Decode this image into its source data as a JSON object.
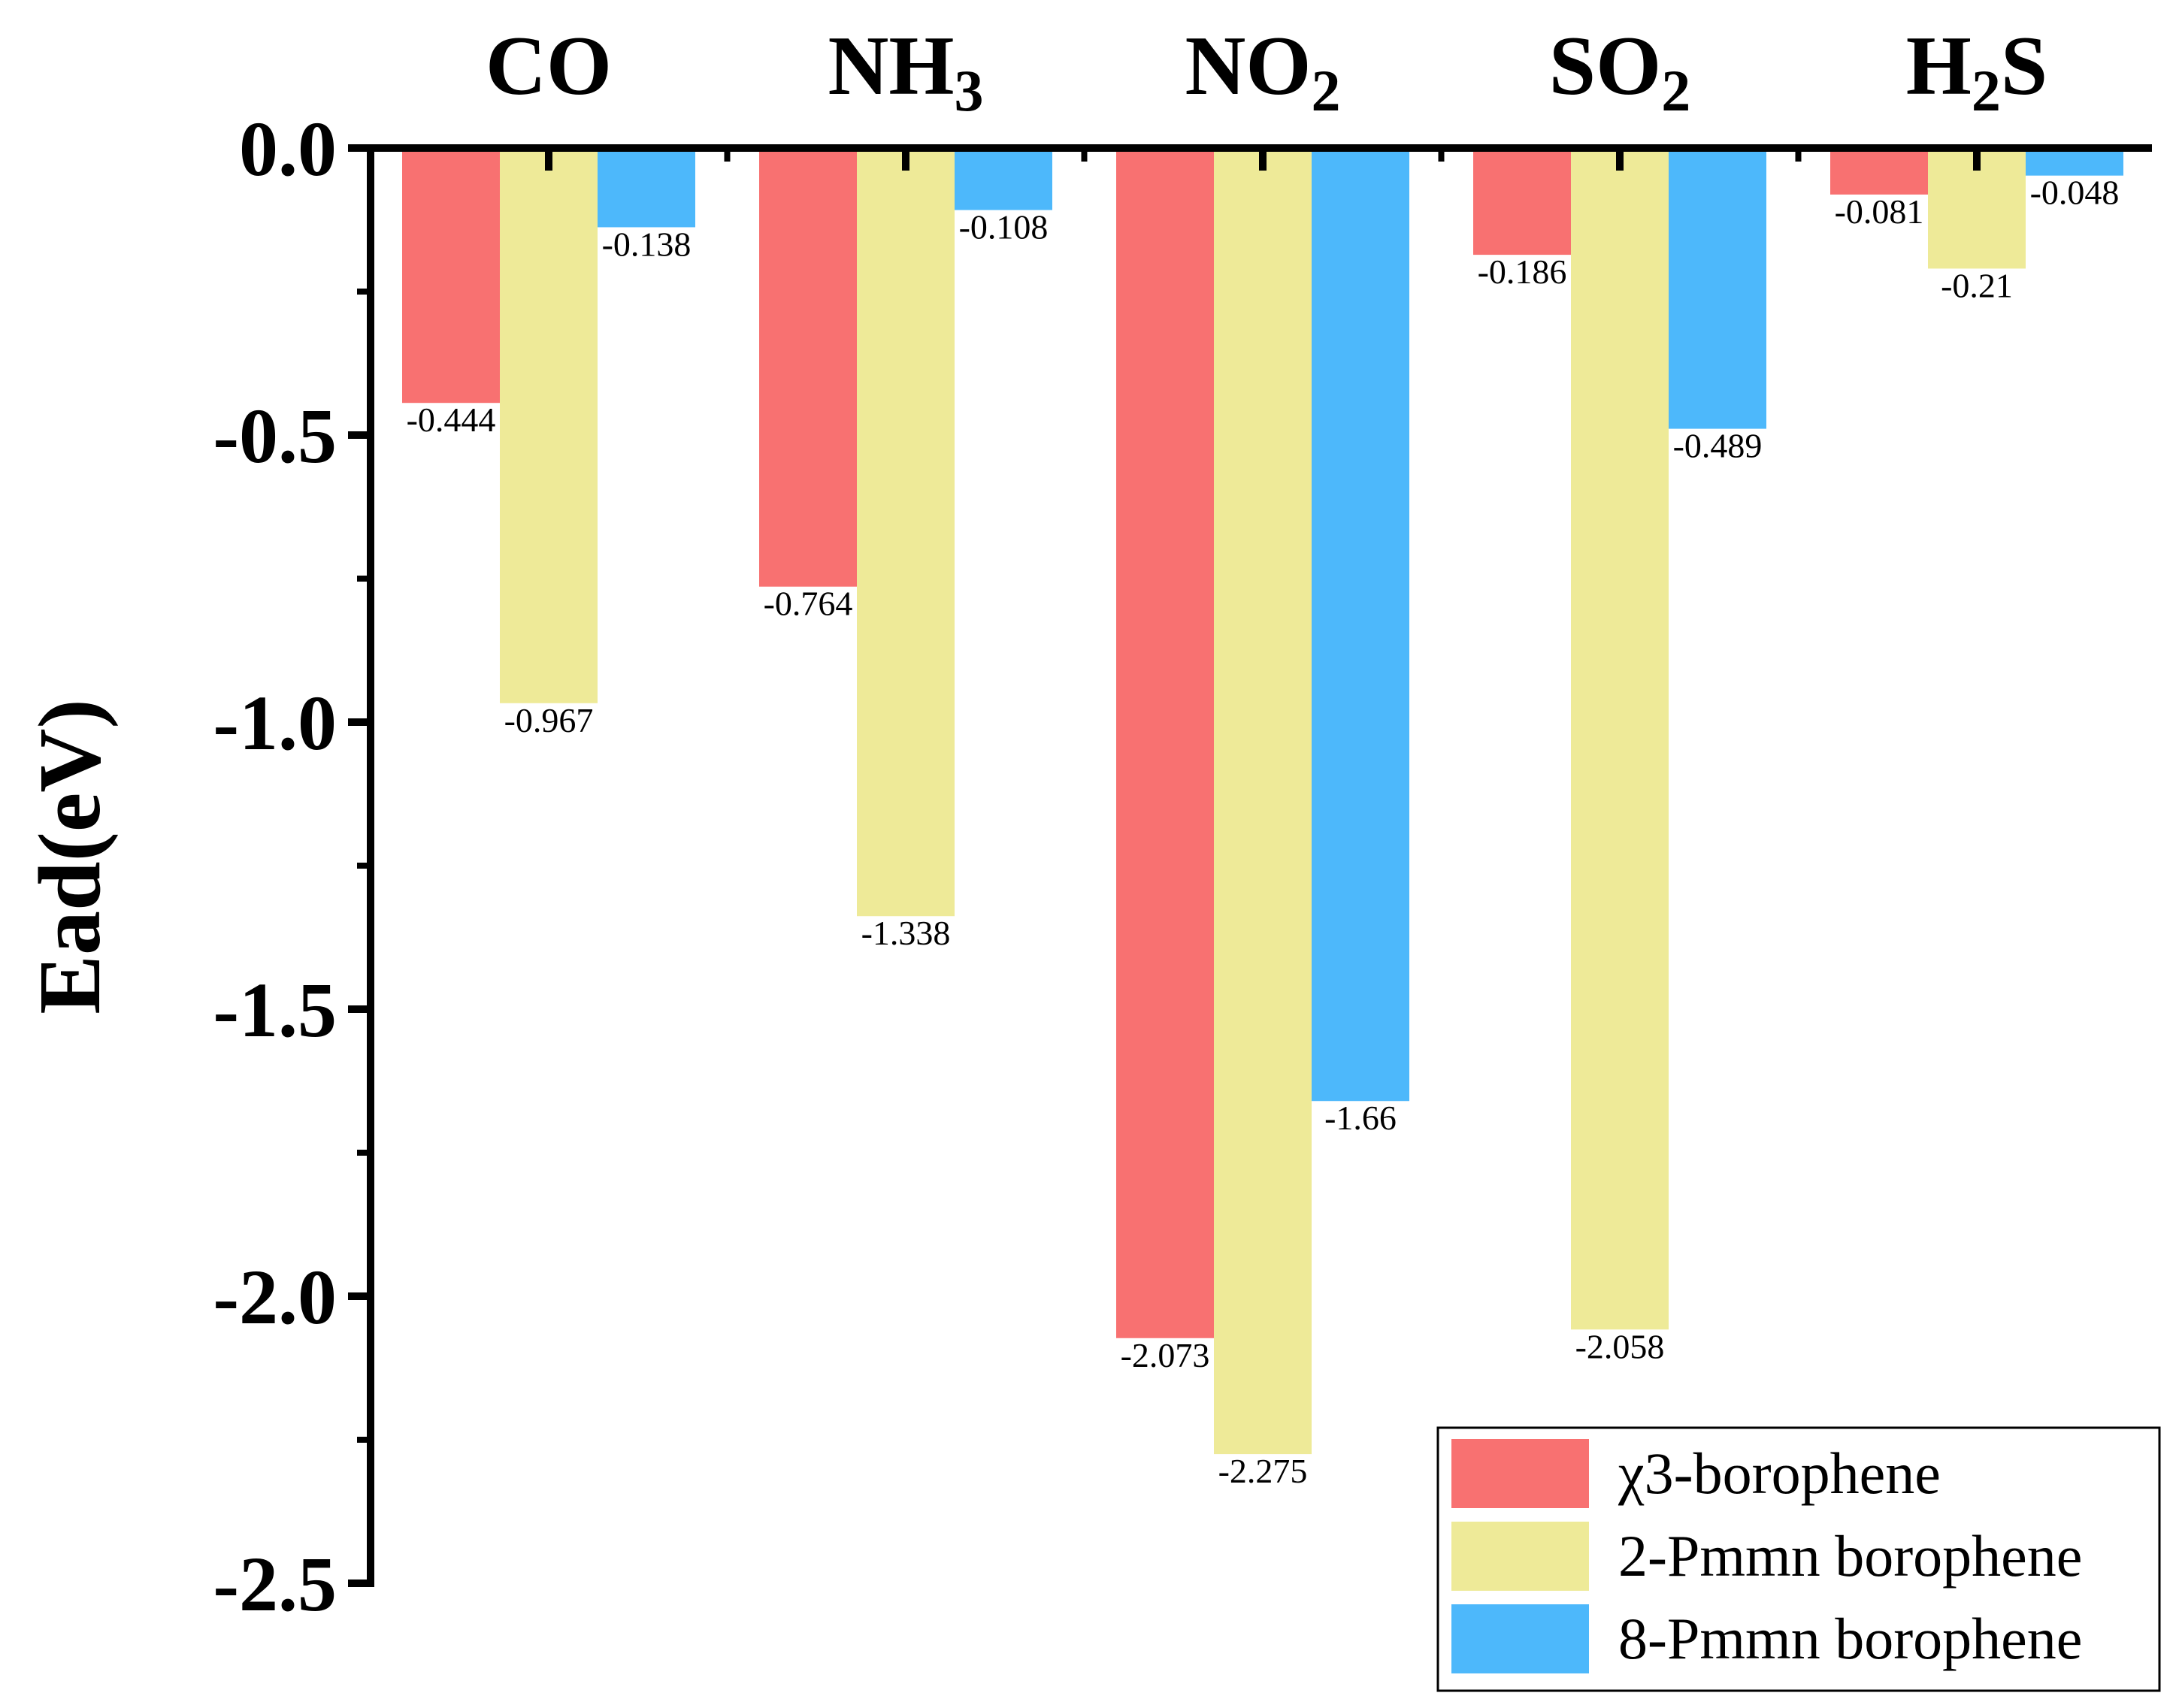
{
  "chart_data": {
    "type": "bar",
    "title": "",
    "xlabel": "",
    "ylabel": "Ead(eV)",
    "ylim": [
      -2.5,
      0.0
    ],
    "yticks": [
      "0.0",
      "-0.5",
      "-1.0",
      "-1.5",
      "-2.0",
      "-2.5"
    ],
    "ytick_values": [
      0.0,
      -0.5,
      -1.0,
      -1.5,
      -2.0,
      -2.5
    ],
    "x_axis_position": "top",
    "categories": [
      {
        "main": "CO",
        "sub": "",
        "tail": ""
      },
      {
        "main": "NH",
        "sub": "3",
        "tail": ""
      },
      {
        "main": "NO",
        "sub": "2",
        "tail": ""
      },
      {
        "main": "SO",
        "sub": "2",
        "tail": ""
      },
      {
        "main": "H",
        "sub": "2",
        "tail": "S"
      }
    ],
    "series": [
      {
        "name": "χ3-borophene",
        "color": "#f87171",
        "values": [
          -0.444,
          -0.764,
          -2.073,
          -0.186,
          -0.081
        ],
        "labels": [
          "-0.444",
          "-0.764",
          "-2.073",
          "-0.186",
          "-0.081"
        ]
      },
      {
        "name": "2-Pmmn borophene",
        "color": "#eeea98",
        "values": [
          -0.967,
          -1.338,
          -2.275,
          -2.058,
          -0.21
        ],
        "labels": [
          "-0.967",
          "-1.338",
          "-2.275",
          "-2.058",
          "-0.21"
        ]
      },
      {
        "name": "8-Pmmn borophene",
        "color": "#4db8fb",
        "values": [
          -0.138,
          -0.108,
          -1.66,
          -0.489,
          -0.048
        ],
        "labels": [
          "-0.138",
          "-0.108",
          "-1.66",
          "-0.489",
          "-0.048"
        ]
      }
    ],
    "legend_position": "bottom-right"
  }
}
